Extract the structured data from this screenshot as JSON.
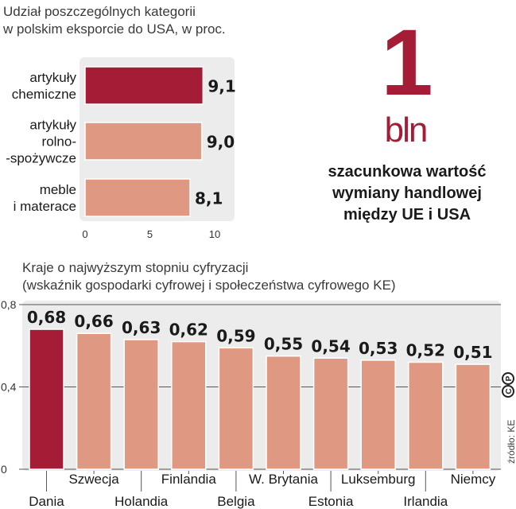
{
  "chart_data": [
    {
      "type": "bar",
      "orientation": "horizontal",
      "title_lines": [
        "Udział poszczególnych kategorii",
        "w polskim eksporcie do USA, w proc."
      ],
      "categories": [
        [
          "artykuły",
          "chemiczne"
        ],
        [
          "artykuły",
          "rolno-",
          "-spożywcze"
        ],
        [
          "meble",
          "i materace"
        ]
      ],
      "values": [
        9.1,
        9.0,
        8.1
      ],
      "value_labels": [
        "9,1",
        "9,0",
        "8,1"
      ],
      "xlim": [
        0,
        10
      ],
      "xticks": [
        0,
        5,
        10
      ],
      "xtick_labels": [
        "0",
        "5",
        "10"
      ],
      "highlight_index": 0
    },
    {
      "type": "bar",
      "orientation": "vertical",
      "title_lines": [
        "Kraje o najwyższym stopniu cyfryzacji",
        "(wskaźnik gospodarki cyfrowej i społeczeństwa cyfrowego KE)"
      ],
      "categories": [
        "Dania",
        "Szwecja",
        "Holandia",
        "Finlandia",
        "Belgia",
        "W. Brytania",
        "Estonia",
        "Luksemburg",
        "Irlandia",
        "Niemcy"
      ],
      "values": [
        0.68,
        0.66,
        0.63,
        0.62,
        0.59,
        0.55,
        0.54,
        0.53,
        0.52,
        0.51
      ],
      "value_labels": [
        "0,68",
        "0,66",
        "0,63",
        "0,62",
        "0,59",
        "0,55",
        "0,54",
        "0,53",
        "0,52",
        "0,51"
      ],
      "ylim": [
        0,
        0.8
      ],
      "yticks": [
        0,
        0.4,
        0.8
      ],
      "ytick_labels": [
        "0",
        "0,4",
        "0,8"
      ],
      "highlight_index": 0
    }
  ],
  "headline": {
    "number": "1",
    "unit": "bln",
    "description": [
      "szacunkowa wartość",
      "wymiany handlowej",
      "między UE i USA"
    ]
  },
  "source": "źródło: KE",
  "logo_text": "CP",
  "colors": {
    "highlight": "#a51c36",
    "bar": "#df9982",
    "panel": "#ececec",
    "text": "#1a1a1a",
    "grid": "#555555"
  }
}
